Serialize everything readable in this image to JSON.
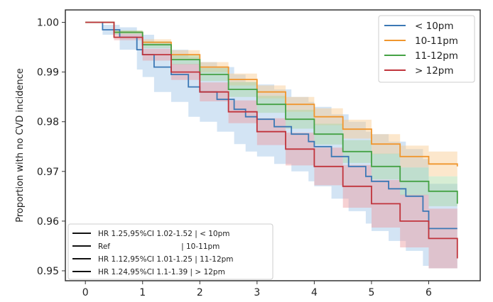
{
  "chart_data": {
    "type": "line",
    "title": "",
    "xlabel": "",
    "ylabel": "Proportion with no CVD incidence",
    "xlim": [
      -0.35,
      6.9
    ],
    "ylim": [
      0.948,
      1.0025
    ],
    "xticks": [
      "0",
      "1",
      "2",
      "3",
      "4",
      "5",
      "6"
    ],
    "yticks": [
      "1.00",
      "0.99",
      "0.98",
      "0.97",
      "0.96",
      "0.95"
    ],
    "legend_position": "top-right",
    "series": [
      {
        "name": "< 10pm",
        "color": "#3b78b5",
        "band_color": "#9dc3e6",
        "x": [
          0,
          0.3,
          0.6,
          0.9,
          1.0,
          1.2,
          1.5,
          1.8,
          2.0,
          2.3,
          2.6,
          2.8,
          3.0,
          3.3,
          3.6,
          3.9,
          4.0,
          4.3,
          4.6,
          4.9,
          5.0,
          5.3,
          5.6,
          5.9,
          6.0,
          6.5
        ],
        "values": [
          1.0,
          0.9985,
          0.997,
          0.9945,
          0.9935,
          0.991,
          0.9895,
          0.987,
          0.986,
          0.9845,
          0.9825,
          0.981,
          0.9805,
          0.979,
          0.9775,
          0.976,
          0.975,
          0.973,
          0.971,
          0.969,
          0.968,
          0.9665,
          0.965,
          0.962,
          0.9585,
          0.9585
        ],
        "lower": [
          1.0,
          0.9975,
          0.9945,
          0.9905,
          0.989,
          0.986,
          0.984,
          0.981,
          0.98,
          0.978,
          0.9755,
          0.974,
          0.973,
          0.9715,
          0.97,
          0.968,
          0.967,
          0.9645,
          0.962,
          0.9595,
          0.958,
          0.956,
          0.954,
          0.951,
          0.9505,
          0.9505
        ],
        "upper": [
          1.0,
          0.9995,
          0.999,
          0.998,
          0.9975,
          0.996,
          0.9945,
          0.993,
          0.992,
          0.991,
          0.9895,
          0.988,
          0.9875,
          0.9865,
          0.985,
          0.984,
          0.983,
          0.9815,
          0.98,
          0.978,
          0.9775,
          0.976,
          0.9745,
          0.9725,
          0.9675,
          0.9675
        ]
      },
      {
        "name": "10-11pm",
        "color": "#f0962e",
        "band_color": "#f8c98f",
        "x": [
          0,
          0.5,
          1.0,
          1.5,
          2.0,
          2.5,
          3.0,
          3.5,
          4.0,
          4.5,
          5.0,
          5.5,
          6.0,
          6.5
        ],
        "values": [
          1.0,
          0.998,
          0.996,
          0.9935,
          0.991,
          0.9885,
          0.986,
          0.9835,
          0.981,
          0.9785,
          0.9755,
          0.973,
          0.9715,
          0.971
        ],
        "lower": [
          1.0,
          0.9977,
          0.9954,
          0.9926,
          0.99,
          0.9873,
          0.9847,
          0.982,
          0.9793,
          0.9766,
          0.9735,
          0.9708,
          0.969,
          0.9682
        ],
        "upper": [
          1.0,
          0.9983,
          0.9966,
          0.9944,
          0.992,
          0.9897,
          0.9873,
          0.985,
          0.9827,
          0.9804,
          0.9775,
          0.9752,
          0.974,
          0.9738
        ]
      },
      {
        "name": "11-12pm",
        "color": "#45a245",
        "band_color": "#a6d8a0",
        "x": [
          0,
          0.5,
          1.0,
          1.5,
          2.0,
          2.5,
          3.0,
          3.5,
          4.0,
          4.5,
          5.0,
          5.5,
          6.0,
          6.5
        ],
        "values": [
          1.0,
          0.998,
          0.9955,
          0.9925,
          0.9895,
          0.9865,
          0.9835,
          0.9805,
          0.9775,
          0.974,
          0.971,
          0.968,
          0.966,
          0.9635
        ],
        "lower": [
          1.0,
          0.9976,
          0.9948,
          0.9915,
          0.9882,
          0.985,
          0.9818,
          0.9786,
          0.9754,
          0.9717,
          0.9684,
          0.9652,
          0.963,
          0.9603
        ],
        "upper": [
          1.0,
          0.9984,
          0.9962,
          0.9935,
          0.9908,
          0.988,
          0.9852,
          0.9824,
          0.9796,
          0.9763,
          0.9736,
          0.9708,
          0.969,
          0.9667
        ]
      },
      {
        "name": "> 12pm",
        "color": "#c0343c",
        "band_color": "#ec9a9e",
        "x": [
          0,
          0.5,
          1.0,
          1.5,
          2.0,
          2.5,
          3.0,
          3.5,
          4.0,
          4.5,
          5.0,
          5.5,
          6.0,
          6.5
        ],
        "values": [
          1.0,
          0.997,
          0.9935,
          0.99,
          0.986,
          0.982,
          0.978,
          0.9745,
          0.971,
          0.967,
          0.9635,
          0.96,
          0.9565,
          0.9525
        ],
        "lower": [
          1.0,
          0.9964,
          0.9923,
          0.9884,
          0.9841,
          0.9797,
          0.9753,
          0.9712,
          0.9672,
          0.9627,
          0.9587,
          0.9547,
          0.9505,
          0.9455
        ],
        "upper": [
          1.0,
          0.9976,
          0.9947,
          0.9916,
          0.9879,
          0.9843,
          0.9807,
          0.9778,
          0.9748,
          0.9713,
          0.9683,
          0.9653,
          0.9625,
          0.9595
        ]
      }
    ],
    "hr_legend": [
      "HR 1.25,95%CI 1.02-1.52 | < 10pm",
      "Ref                              | 10-11pm",
      "HR 1.12,95%CI 1.01-1.25 | 11-12pm",
      "HR 1.24,95%CI 1.1-1.39 | > 12pm"
    ]
  }
}
